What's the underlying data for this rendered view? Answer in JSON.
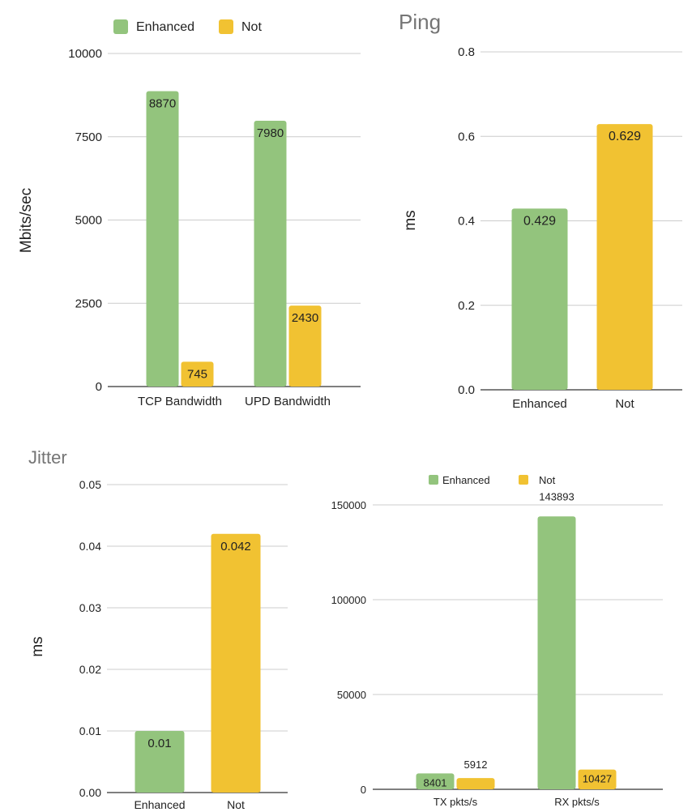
{
  "colors": {
    "enhanced": "#93c47d",
    "not": "#f1c232",
    "grid": "#cccccc",
    "axis": "#333333",
    "text": "#222222",
    "title": "#757575"
  },
  "chart_data": [
    {
      "type": "bar",
      "title": "",
      "ylabel": "Mbits/sec",
      "categories": [
        "TCP Bandwidth",
        "UPD Bandwidth"
      ],
      "series": [
        {
          "name": "Enhanced",
          "values": [
            8870,
            7980
          ]
        },
        {
          "name": "Not",
          "values": [
            745,
            2430
          ]
        }
      ],
      "ylim": [
        0,
        10000
      ],
      "yticks": [
        "0",
        "2500",
        "5000",
        "7500",
        "10000"
      ],
      "legend": "top-left",
      "grid": true
    },
    {
      "type": "bar",
      "title": "Ping",
      "ylabel": "ms",
      "categories": [
        "Enhanced",
        "Not"
      ],
      "series": [
        {
          "values": [
            0.429,
            0.629
          ]
        }
      ],
      "labels": [
        "0.429",
        "0.629"
      ],
      "ylim": [
        0,
        0.8
      ],
      "yticks": [
        "0.0",
        "0.2",
        "0.4",
        "0.6",
        "0.8"
      ],
      "grid": true
    },
    {
      "type": "bar",
      "title": "Jitter",
      "ylabel": "ms",
      "categories": [
        "Enhanced",
        "Not"
      ],
      "series": [
        {
          "values": [
            0.01,
            0.042
          ]
        }
      ],
      "labels": [
        "0.01",
        "0.042"
      ],
      "ylim": [
        0,
        0.05
      ],
      "yticks": [
        "0.00",
        "0.01",
        "0.02",
        "0.03",
        "0.04",
        "0.05"
      ],
      "grid": true
    },
    {
      "type": "bar",
      "title": "",
      "ylabel": "",
      "categories": [
        "TX pkts/s",
        "RX pkts/s"
      ],
      "series": [
        {
          "name": "Enhanced",
          "values": [
            8401,
            143893
          ]
        },
        {
          "name": "Not",
          "values": [
            5912,
            10427
          ]
        }
      ],
      "ylim": [
        0,
        150000
      ],
      "yticks": [
        "0",
        "50000",
        "100000",
        "150000"
      ],
      "legend": "top-center",
      "grid": true
    }
  ]
}
